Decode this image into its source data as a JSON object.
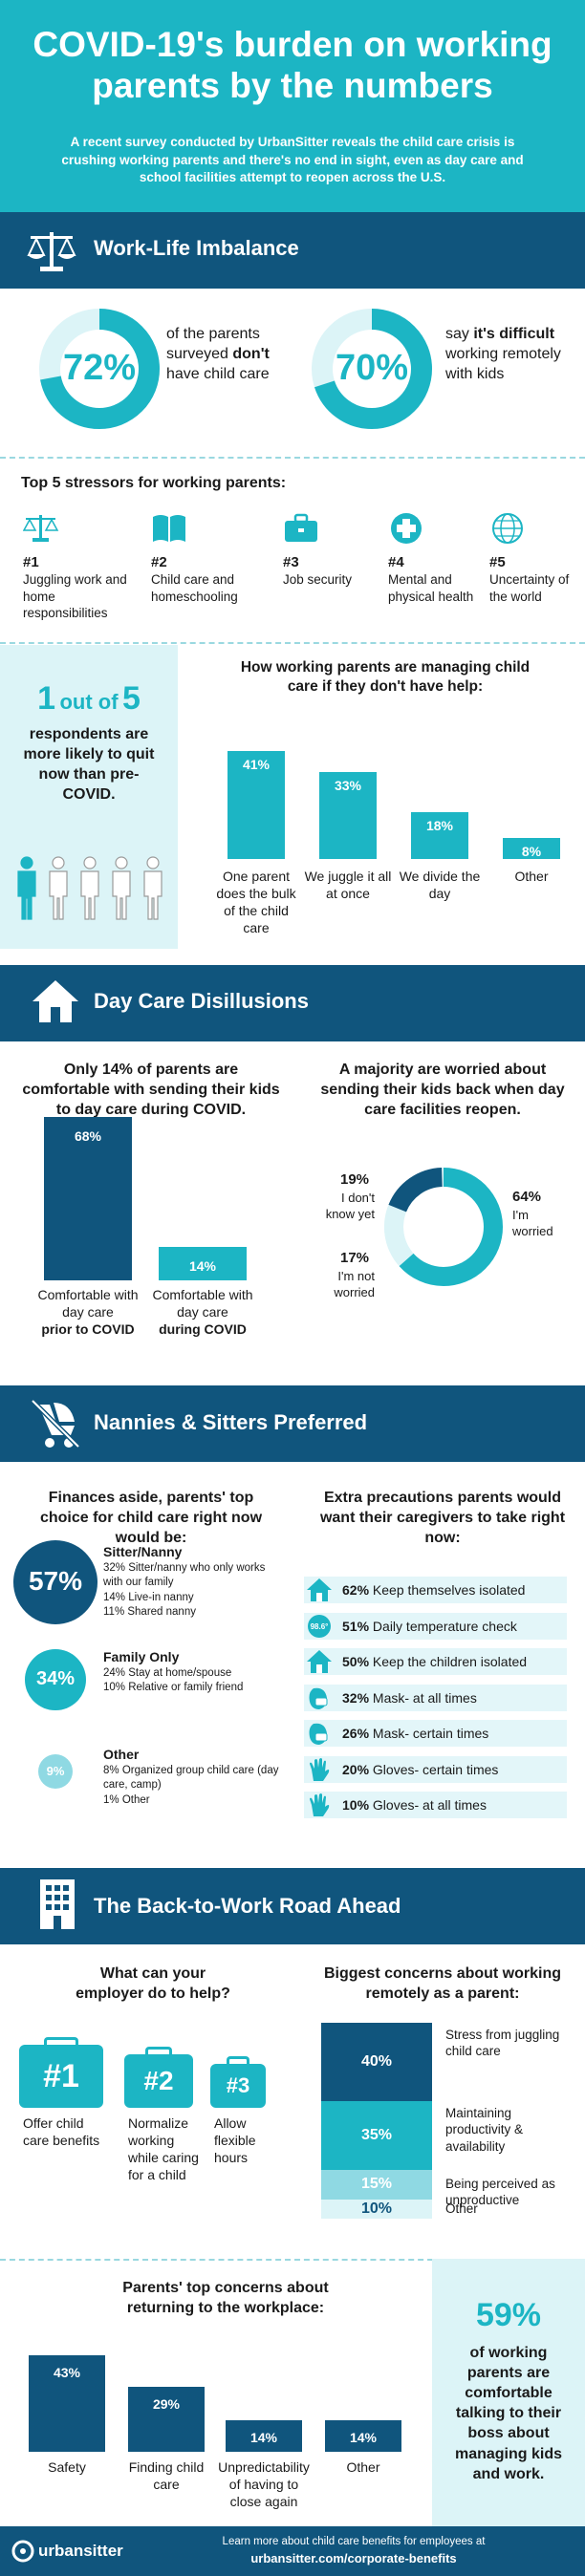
{
  "header": {
    "title": "COVID-19's burden on working parents by the numbers",
    "subtitle": "A recent survey conducted by UrbanSitter reveals the child care crisis is crushing working parents and there's no end in sight, even as day care and school facilities attempt to reopen across the U.S."
  },
  "worklife": {
    "title": "Work-Life Imbalance",
    "stat1_value": "72%",
    "stat1_pre": "of the parents surveyed ",
    "stat1_bold": "don't",
    "stat1_post": " have child care",
    "stat2_value": "70%",
    "stat2_pre": "say ",
    "stat2_bold": "it's difficult",
    "stat2_post": " working remotely with kids",
    "stat1_fraction": 0.72,
    "stat2_fraction": 0.7,
    "stressors_title": "Top 5 stressors for working parents:",
    "stressors": [
      {
        "rank": "#1",
        "label": "Juggling work and home responsibilities",
        "icon": "scales-icon"
      },
      {
        "rank": "#2",
        "label": "Child care and homeschooling",
        "icon": "book-icon"
      },
      {
        "rank": "#3",
        "label": "Job security",
        "icon": "briefcase-icon"
      },
      {
        "rank": "#4",
        "label": "Mental and physical health",
        "icon": "medical-cross-icon"
      },
      {
        "rank": "#5",
        "label": "Uncertainty of the world",
        "icon": "globe-icon"
      }
    ],
    "quit_num1": "1",
    "quit_mid": "out of",
    "quit_num2": "5",
    "quit_text": "respondents are more likely to quit now than pre-COVID.",
    "managing_title": "How working parents are managing child care if they don't have help:",
    "managing_bars": [
      {
        "value": "41%",
        "pct": 41,
        "label": "One parent does the bulk of the child care"
      },
      {
        "value": "33%",
        "pct": 33,
        "label": "We juggle it all at once"
      },
      {
        "value": "18%",
        "pct": 18,
        "label": "We divide the day"
      },
      {
        "value": "8%",
        "pct": 8,
        "label": "Other"
      }
    ]
  },
  "daycare": {
    "title": "Day Care Disillusions",
    "left_title": "Only 14% of parents are comfortable with sending their kids to day care during COVID.",
    "bar1_value": "68%",
    "bar1_label": "Comfortable with day care",
    "bar1_bold": "prior to COVID",
    "bar2_value": "14%",
    "bar2_label": "Comfortable with day care",
    "bar2_bold": "during COVID",
    "bar1_pct": 68,
    "bar2_pct": 14,
    "right_title": "A majority are worried about sending their kids back when day care facilities reopen.",
    "donut": [
      {
        "value": "19%",
        "label": "I don't know yet",
        "pct": 19
      },
      {
        "value": "17%",
        "label": "I'm not worried",
        "pct": 17
      },
      {
        "value": "64%",
        "label": "I'm worried",
        "pct": 64
      }
    ]
  },
  "nannies": {
    "title": "Nannies & Sitters Preferred",
    "left_title": "Finances aside, parents' top choice for child care right now would be:",
    "choices": [
      {
        "value": "57%",
        "heading": "Sitter/Nanny",
        "lines": [
          "32% Sitter/nanny who only works with our family",
          "14% Live-in nanny",
          "11% Shared nanny"
        ]
      },
      {
        "value": "34%",
        "heading": "Family Only",
        "lines": [
          "24% Stay at home/spouse",
          "10% Relative or family friend"
        ]
      },
      {
        "value": "9%",
        "heading": "Other",
        "lines": [
          "8% Organized group child care (day care, camp)",
          "1% Other"
        ]
      }
    ],
    "right_title": "Extra precautions parents would want their caregivers to take right now:",
    "precautions": [
      {
        "value": "62%",
        "label": "Keep themselves isolated",
        "icon": "house-icon"
      },
      {
        "value": "51%",
        "label": "Daily temperature check",
        "icon": "thermometer-icon",
        "icon_text": "98.6°"
      },
      {
        "value": "50%",
        "label": "Keep the children isolated",
        "icon": "house-icon"
      },
      {
        "value": "32%",
        "label": "Mask- at all times",
        "icon": "mask-icon"
      },
      {
        "value": "26%",
        "label": "Mask- certain times",
        "icon": "mask-icon"
      },
      {
        "value": "20%",
        "label": "Gloves- certain times",
        "icon": "glove-icon"
      },
      {
        "value": "10%",
        "label": "Gloves- at all times",
        "icon": "glove-icon"
      }
    ]
  },
  "backtowork": {
    "title": "The Back-to-Work Road Ahead",
    "employer_title": "What can your employer do to help?",
    "employer": [
      {
        "rank": "#1",
        "label": "Offer child care benefits"
      },
      {
        "rank": "#2",
        "label": "Normalize working while caring for a child"
      },
      {
        "rank": "#3",
        "label": "Allow flexible hours"
      }
    ],
    "remote_title": "Biggest concerns about working remotely as a parent:",
    "remote": [
      {
        "value": "40%",
        "pct": 40,
        "label": "Stress from juggling child care"
      },
      {
        "value": "35%",
        "pct": 35,
        "label": "Maintaining productivity & availability"
      },
      {
        "value": "15%",
        "pct": 15,
        "label": "Being perceived as unproductive"
      },
      {
        "value": "10%",
        "pct": 10,
        "label": "Other"
      }
    ],
    "return_title": "Parents' top concerns about returning to the workplace:",
    "return_bars": [
      {
        "value": "43%",
        "pct": 43,
        "label": "Safety"
      },
      {
        "value": "29%",
        "pct": 29,
        "label": "Finding child care"
      },
      {
        "value": "14%",
        "pct": 14,
        "label": "Unpredictability of having to close again"
      },
      {
        "value": "14%",
        "pct": 14,
        "label": "Other"
      }
    ],
    "boss_value": "59%",
    "boss_text": "of working parents are comfortable talking to their boss about managing kids and work."
  },
  "footer": {
    "logo": "urbansitter",
    "line1": "Learn more about child care benefits for employees at",
    "link": "urbansitter.com/corporate-benefits"
  },
  "colors": {
    "teal": "#1cb5c4",
    "navy": "#10557d",
    "light_teal": "#8fd9e3",
    "pale_teal": "#dcf4f7"
  }
}
